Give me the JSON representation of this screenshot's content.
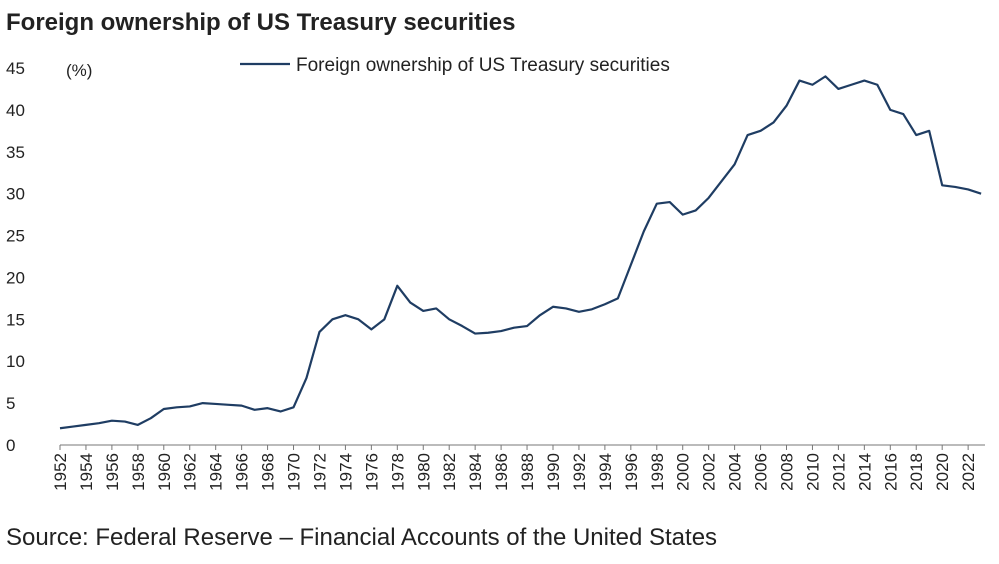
{
  "chart_data": {
    "type": "line",
    "title": "Foreign ownership of US Treasury securities",
    "y_unit_label": "(%)",
    "source": "Source: Federal Reserve – Financial Accounts of the United States",
    "x": [
      1952,
      1953,
      1954,
      1955,
      1956,
      1957,
      1958,
      1959,
      1960,
      1961,
      1962,
      1963,
      1964,
      1965,
      1966,
      1967,
      1968,
      1969,
      1970,
      1971,
      1972,
      1973,
      1974,
      1975,
      1976,
      1977,
      1978,
      1979,
      1980,
      1981,
      1982,
      1983,
      1984,
      1985,
      1986,
      1987,
      1988,
      1989,
      1990,
      1991,
      1992,
      1993,
      1994,
      1995,
      1996,
      1997,
      1998,
      1999,
      2000,
      2001,
      2002,
      2003,
      2004,
      2005,
      2006,
      2007,
      2008,
      2009,
      2010,
      2011,
      2012,
      2013,
      2014,
      2015,
      2016,
      2017,
      2018,
      2019,
      2020,
      2021,
      2022,
      2023
    ],
    "series": [
      {
        "name": "Foreign ownership of US Treasury securities",
        "color": "#1f3d63",
        "values": [
          2.0,
          2.2,
          2.4,
          2.6,
          2.9,
          2.8,
          2.4,
          3.2,
          4.3,
          4.5,
          4.6,
          5.0,
          4.9,
          4.8,
          4.7,
          4.2,
          4.4,
          4.0,
          4.5,
          8.0,
          13.5,
          15.0,
          15.5,
          15.0,
          13.8,
          15.0,
          19.0,
          17.0,
          16.0,
          16.3,
          15.0,
          14.2,
          13.3,
          13.4,
          13.6,
          14.0,
          14.2,
          15.5,
          16.5,
          16.3,
          15.9,
          16.2,
          16.8,
          17.5,
          21.5,
          25.5,
          28.8,
          29.0,
          27.5,
          28.0,
          29.5,
          31.5,
          33.5,
          37.0,
          37.5,
          38.5,
          40.5,
          43.5,
          43.0,
          44.0,
          42.5,
          43.0,
          43.5,
          43.0,
          40.0,
          39.5,
          37.0,
          37.5,
          31.0,
          30.8,
          30.5,
          30.0
        ]
      }
    ],
    "xlim": [
      1952,
      2023.3
    ],
    "xticks": [
      1952,
      1954,
      1956,
      1958,
      1960,
      1962,
      1964,
      1966,
      1968,
      1970,
      1972,
      1974,
      1976,
      1978,
      1980,
      1982,
      1984,
      1986,
      1988,
      1990,
      1992,
      1994,
      1996,
      1998,
      2000,
      2002,
      2004,
      2006,
      2008,
      2010,
      2012,
      2014,
      2016,
      2018,
      2020,
      2022
    ],
    "ylim": [
      0,
      45
    ],
    "yticks": [
      0,
      5,
      10,
      15,
      20,
      25,
      30,
      35,
      40,
      45
    ],
    "legend": "top"
  }
}
